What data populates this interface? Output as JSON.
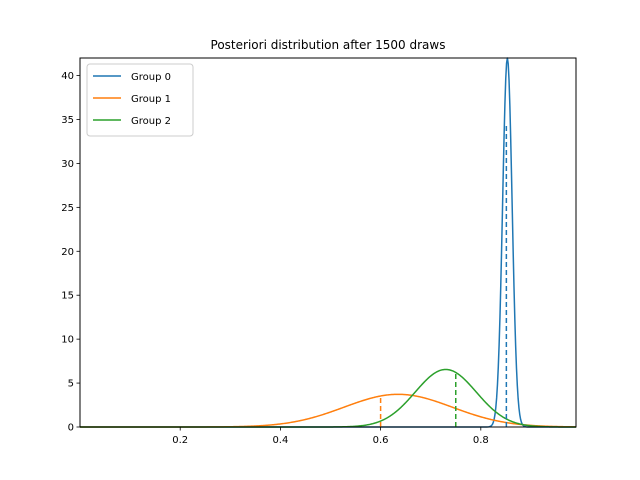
{
  "chart_data": {
    "type": "line",
    "title": "Posteriori distribution after 1500 draws",
    "xlabel": "",
    "ylabel": "",
    "xlim": [
      0.0,
      0.99
    ],
    "ylim": [
      0,
      42
    ],
    "x_ticks": [
      0.2,
      0.4,
      0.6,
      0.8
    ],
    "x_tick_labels": [
      "0.2",
      "0.4",
      "0.6",
      "0.8"
    ],
    "y_ticks": [
      0,
      5,
      10,
      15,
      20,
      25,
      30,
      35,
      40
    ],
    "y_tick_labels": [
      "0",
      "5",
      "10",
      "15",
      "20",
      "25",
      "30",
      "35",
      "40"
    ],
    "grid": false,
    "legend_position": "upper left",
    "series": [
      {
        "name": "Group 0",
        "color": "#1f77b4",
        "distribution": {
          "kind": "normal",
          "mean": 0.853,
          "sd": 0.0095,
          "peak": 42.0
        },
        "marker_x": 0.851,
        "marker_y": 34.5
      },
      {
        "name": "Group 1",
        "color": "#ff7f0e",
        "distribution": {
          "kind": "normal",
          "mean": 0.635,
          "sd": 0.108,
          "peak": 3.72
        },
        "marker_x": 0.6,
        "marker_y": 3.5
      },
      {
        "name": "Group 2",
        "color": "#2ca02c",
        "distribution": {
          "kind": "normal",
          "mean": 0.73,
          "sd": 0.061,
          "peak": 6.55
        },
        "marker_x": 0.75,
        "marker_y": 6.2
      }
    ]
  }
}
